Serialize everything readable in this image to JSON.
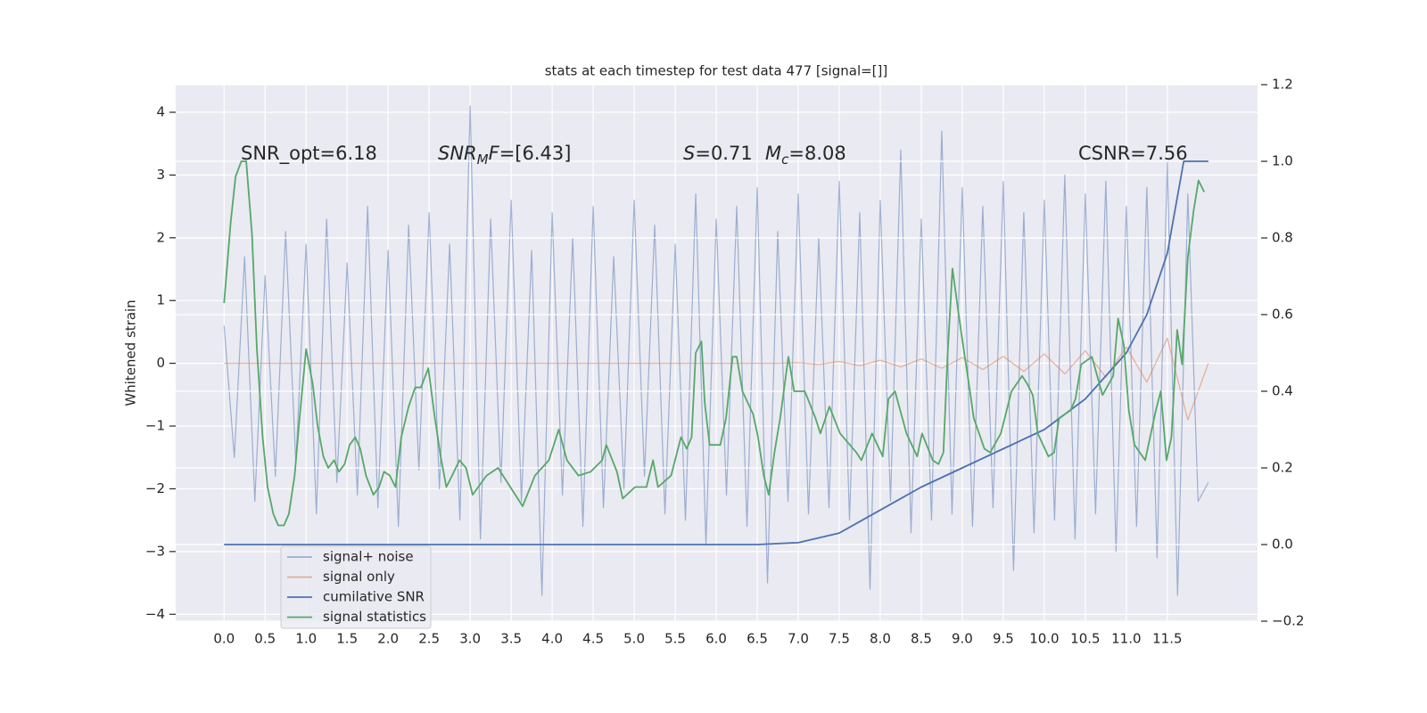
{
  "chart_data": {
    "type": "line",
    "title": "stats at each timestep for test data 477 [signal=[]]",
    "y_label": "Whitened strain",
    "annotations": [
      [
        {
          "text": "SNR_opt=6.18"
        }
      ],
      [
        {
          "text": "SNR",
          "style": "italic"
        },
        {
          "text": "M",
          "style": "italic-sub"
        },
        {
          "text": "F",
          "style": "italic"
        },
        {
          "text": "=[6.43]"
        }
      ],
      [
        {
          "text": "S",
          "style": "italic"
        },
        {
          "text": "=0.71"
        }
      ],
      [
        {
          "text": "M",
          "style": "italic"
        },
        {
          "text": "c",
          "style": "italic-sub"
        },
        {
          "text": "=8.08"
        }
      ],
      [
        {
          "text": "CSNR=7.56"
        }
      ]
    ],
    "xlim": [
      -0.59,
      12.6
    ],
    "ylim": [
      -4.11,
      4.44
    ],
    "y2lim": [
      -0.2,
      1.2
    ],
    "xticks": [
      {
        "value": 0,
        "label": "0.0"
      },
      0.5,
      {
        "value": 1,
        "label": "1.0"
      },
      1.5,
      {
        "value": 2,
        "label": "2.0"
      },
      2.5,
      {
        "value": 3,
        "label": "3.0"
      },
      3.5,
      {
        "value": 4,
        "label": "4.0"
      },
      4.5,
      {
        "value": 5,
        "label": "5.0"
      },
      5.5,
      {
        "value": 6,
        "label": "6.0"
      },
      6.5,
      {
        "value": 7,
        "label": "7.0"
      },
      7.5,
      {
        "value": 8,
        "label": "8.0"
      },
      8.5,
      {
        "value": 9,
        "label": "9.0"
      },
      9.5,
      {
        "value": 10,
        "label": "10.0"
      },
      10.5,
      {
        "value": 11,
        "label": "11.0"
      },
      11.5
    ],
    "yticks": [
      {
        "value": -4,
        "label": "−4"
      },
      {
        "value": -3,
        "label": "−3"
      },
      {
        "value": -2,
        "label": "−2"
      },
      {
        "value": -1,
        "label": "−1"
      },
      0,
      1,
      2,
      3,
      4
    ],
    "y2ticks": [
      {
        "value": -0.2,
        "label": "−0.2"
      },
      {
        "value": 0,
        "label": "0.0"
      },
      0.2,
      0.4,
      0.6,
      0.8,
      {
        "value": 1,
        "label": "1.0"
      },
      1.2
    ],
    "grid": true,
    "legend": "lower left",
    "series": [
      {
        "name": "signal+ noise",
        "color": "#4c72b0",
        "alpha": 0.5,
        "x": [
          0,
          0.125,
          0.25,
          0.375,
          0.5,
          0.625,
          0.75,
          0.875,
          1,
          1.125,
          1.25,
          1.375,
          1.5,
          1.625,
          1.75,
          1.875,
          2,
          2.125,
          2.25,
          2.375,
          2.5,
          2.625,
          2.75,
          2.875,
          3,
          3.125,
          3.25,
          3.375,
          3.5,
          3.625,
          3.75,
          3.875,
          4,
          4.125,
          4.25,
          4.375,
          4.5,
          4.625,
          4.75,
          4.875,
          5,
          5.125,
          5.25,
          5.375,
          5.5,
          5.625,
          5.75,
          5.875,
          6,
          6.125,
          6.25,
          6.375,
          6.5,
          6.625,
          6.75,
          6.875,
          7,
          7.125,
          7.25,
          7.375,
          7.5,
          7.625,
          7.75,
          7.875,
          8,
          8.125,
          8.25,
          8.375,
          8.5,
          8.625,
          8.75,
          8.875,
          9,
          9.125,
          9.25,
          9.375,
          9.5,
          9.625,
          9.75,
          9.875,
          10,
          10.125,
          10.25,
          10.375,
          10.5,
          10.625,
          10.75,
          10.875,
          11,
          11.125,
          11.25,
          11.375,
          11.5,
          11.625,
          11.75,
          11.875,
          12
        ],
        "values": [
          0.6,
          -1.5,
          1.7,
          -2.2,
          1.4,
          -1.8,
          2.1,
          -1.6,
          1.9,
          -2.4,
          2.3,
          -1.9,
          1.6,
          -2.1,
          2.5,
          -2.3,
          1.8,
          -2.6,
          2.2,
          -1.7,
          2.4,
          -2.0,
          1.9,
          -2.5,
          4.1,
          -2.8,
          2.3,
          -1.9,
          2.6,
          -2.2,
          1.8,
          -3.7,
          2.4,
          -2.1,
          2.0,
          -2.6,
          2.5,
          -2.3,
          1.7,
          -2.0,
          2.6,
          -1.8,
          2.2,
          -2.4,
          1.9,
          -2.5,
          2.7,
          -2.9,
          2.3,
          -2.1,
          2.5,
          -2.6,
          2.8,
          -3.5,
          2.1,
          -2.2,
          2.7,
          -2.4,
          2.0,
          -2.3,
          2.9,
          -2.5,
          2.4,
          -3.6,
          2.6,
          -2.2,
          3.4,
          -2.7,
          2.3,
          -2.5,
          3.7,
          -2.4,
          2.8,
          -2.6,
          2.5,
          -2.3,
          2.9,
          -3.3,
          2.4,
          -2.7,
          2.6,
          -2.5,
          3.0,
          -2.8,
          2.7,
          -2.4,
          2.9,
          -3.0,
          2.5,
          -2.6,
          2.8,
          -3.1,
          3.2,
          -3.7,
          2.7,
          -2.2,
          -1.9
        ]
      },
      {
        "name": "signal only",
        "color": "#dd8452",
        "alpha": 0.6,
        "x": [
          0,
          0.25,
          0.5,
          0.75,
          1,
          1.25,
          1.5,
          1.75,
          2,
          2.25,
          2.5,
          2.75,
          3,
          3.25,
          3.5,
          3.75,
          4,
          4.25,
          4.5,
          4.75,
          5,
          5.25,
          5.5,
          5.75,
          6,
          6.25,
          6.5,
          6.75,
          7,
          7.25,
          7.5,
          7.75,
          8,
          8.25,
          8.5,
          8.75,
          9,
          9.25,
          9.5,
          9.75,
          10,
          10.25,
          10.5,
          10.75,
          11,
          11.25,
          11.5,
          11.75,
          12
        ],
        "values": [
          0,
          0,
          0,
          0,
          0,
          0,
          0,
          0,
          0,
          0,
          0,
          0,
          0,
          0,
          0,
          0,
          0,
          0,
          0,
          0,
          0,
          0,
          0,
          0,
          0,
          0,
          0,
          0,
          0.01,
          -0.02,
          0.03,
          -0.04,
          0.05,
          -0.06,
          0.07,
          -0.08,
          0.09,
          -0.1,
          0.11,
          -0.13,
          0.15,
          -0.17,
          0.2,
          -0.22,
          0.26,
          -0.3,
          0.4,
          -0.9,
          0
        ]
      },
      {
        "name": "cumilative SNR",
        "color": "#4c72b0",
        "axis": "y2",
        "x": [
          0,
          6.5,
          7.0,
          7.5,
          7.75,
          8,
          8.5,
          9,
          9.5,
          10,
          10.5,
          11,
          11.25,
          11.5,
          11.6,
          11.7,
          12.0
        ],
        "values": [
          0,
          0,
          0.005,
          0.03,
          0.06,
          0.09,
          0.15,
          0.2,
          0.25,
          0.3,
          0.38,
          0.5,
          0.6,
          0.76,
          0.88,
          1.0,
          1.0
        ]
      },
      {
        "name": "signal statistics",
        "color": "#55a868",
        "axis": "y2",
        "x": [
          0,
          0.08,
          0.14,
          0.21,
          0.27,
          0.34,
          0.4,
          0.47,
          0.53,
          0.6,
          0.66,
          0.73,
          0.79,
          0.86,
          0.92,
          1.0,
          1.08,
          1.14,
          1.21,
          1.27,
          1.34,
          1.4,
          1.47,
          1.53,
          1.6,
          1.66,
          1.73,
          1.82,
          1.89,
          1.95,
          2.02,
          2.09,
          2.16,
          2.25,
          2.33,
          2.4,
          2.49,
          2.57,
          2.64,
          2.71,
          2.78,
          2.87,
          2.95,
          3.03,
          3.2,
          3.34,
          3.49,
          3.64,
          3.79,
          3.96,
          4.08,
          4.18,
          4.32,
          4.47,
          4.61,
          4.66,
          4.79,
          4.86,
          5.01,
          5.15,
          5.23,
          5.29,
          5.45,
          5.57,
          5.64,
          5.7,
          5.75,
          5.82,
          5.86,
          5.92,
          6.05,
          6.12,
          6.2,
          6.25,
          6.32,
          6.45,
          6.51,
          6.58,
          6.64,
          6.71,
          6.78,
          6.88,
          6.95,
          7.08,
          7.21,
          7.27,
          7.38,
          7.51,
          7.71,
          7.77,
          7.9,
          8.03,
          8.1,
          8.18,
          8.32,
          8.45,
          8.51,
          8.64,
          8.71,
          8.77,
          8.82,
          8.88,
          8.95,
          9.01,
          9.08,
          9.14,
          9.27,
          9.34,
          9.47,
          9.6,
          9.73,
          9.79,
          9.86,
          9.92,
          10.05,
          10.12,
          10.18,
          10.32,
          10.38,
          10.45,
          10.58,
          10.71,
          10.84,
          10.9,
          10.97,
          11.03,
          11.1,
          11.23,
          11.36,
          11.42,
          11.49,
          11.55,
          11.62,
          11.68,
          11.75,
          11.82,
          11.88,
          11.95
        ],
        "values": [
          0.63,
          0.84,
          0.96,
          1.0,
          1.0,
          0.81,
          0.51,
          0.28,
          0.15,
          0.08,
          0.05,
          0.05,
          0.08,
          0.18,
          0.33,
          0.51,
          0.42,
          0.31,
          0.23,
          0.2,
          0.22,
          0.19,
          0.21,
          0.26,
          0.28,
          0.25,
          0.18,
          0.13,
          0.15,
          0.19,
          0.18,
          0.15,
          0.28,
          0.36,
          0.41,
          0.41,
          0.46,
          0.33,
          0.23,
          0.15,
          0.18,
          0.22,
          0.2,
          0.13,
          0.18,
          0.2,
          0.15,
          0.1,
          0.18,
          0.22,
          0.3,
          0.22,
          0.18,
          0.19,
          0.22,
          0.26,
          0.19,
          0.12,
          0.15,
          0.15,
          0.22,
          0.15,
          0.18,
          0.28,
          0.25,
          0.28,
          0.5,
          0.53,
          0.37,
          0.26,
          0.26,
          0.33,
          0.49,
          0.49,
          0.4,
          0.34,
          0.28,
          0.18,
          0.13,
          0.24,
          0.33,
          0.49,
          0.4,
          0.4,
          0.33,
          0.29,
          0.36,
          0.29,
          0.24,
          0.22,
          0.29,
          0.23,
          0.38,
          0.4,
          0.29,
          0.23,
          0.29,
          0.22,
          0.21,
          0.24,
          0.49,
          0.72,
          0.61,
          0.52,
          0.42,
          0.33,
          0.25,
          0.24,
          0.29,
          0.4,
          0.44,
          0.42,
          0.39,
          0.29,
          0.23,
          0.24,
          0.33,
          0.35,
          0.38,
          0.47,
          0.49,
          0.39,
          0.44,
          0.59,
          0.52,
          0.35,
          0.26,
          0.22,
          0.35,
          0.4,
          0.22,
          0.28,
          0.56,
          0.47,
          0.75,
          0.87,
          0.95,
          0.92
        ]
      }
    ]
  }
}
